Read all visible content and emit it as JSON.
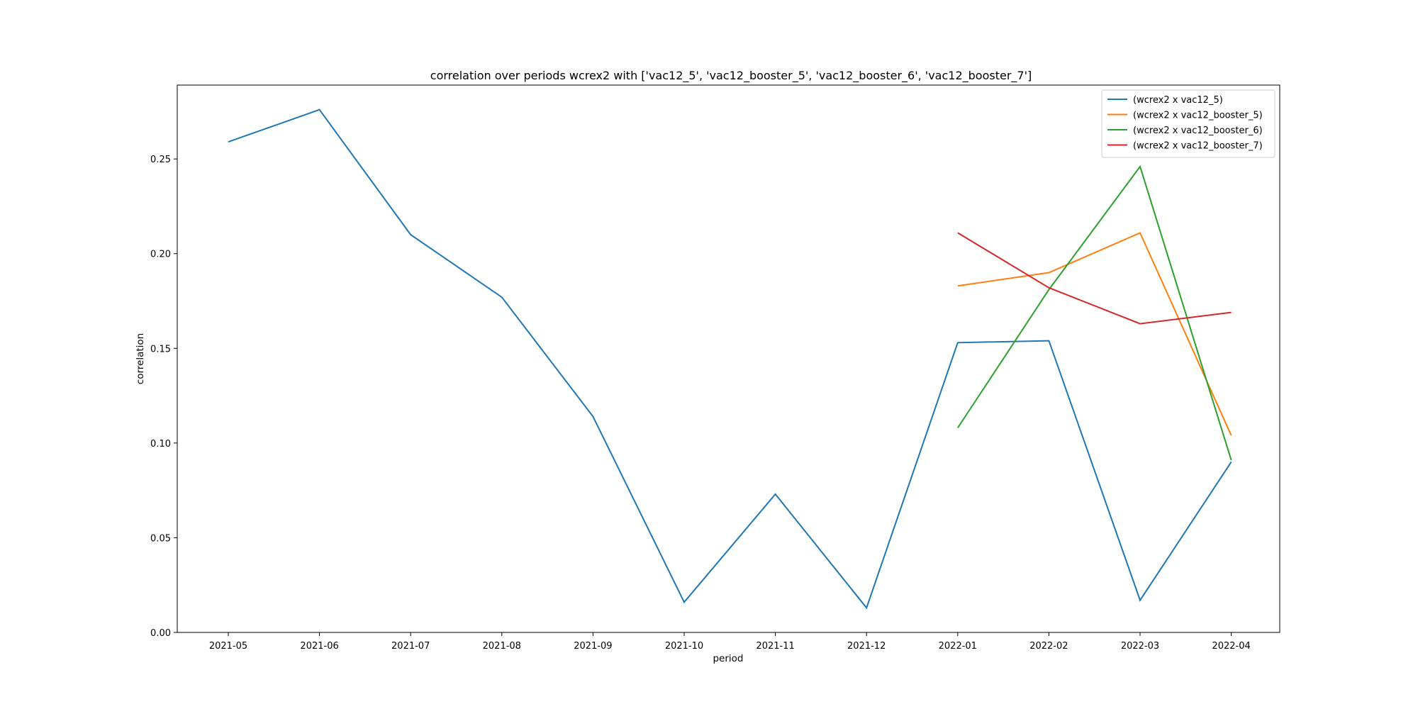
{
  "chart_data": {
    "type": "line",
    "title": "correlation over periods wcrex2 with ['vac12_5', 'vac12_booster_5', 'vac12_booster_6', 'vac12_booster_7']",
    "xlabel": "period",
    "ylabel": "correlation",
    "categories": [
      "2021-05",
      "2021-06",
      "2021-07",
      "2021-08",
      "2021-09",
      "2021-10",
      "2021-11",
      "2021-12",
      "2022-01",
      "2022-02",
      "2022-03",
      "2022-04"
    ],
    "ylim": [
      0.0,
      0.289
    ],
    "yticks": [
      0.0,
      0.05,
      0.1,
      0.15,
      0.2,
      0.25
    ],
    "ytick_labels": [
      "0.00",
      "0.05",
      "0.10",
      "0.15",
      "0.20",
      "0.25"
    ],
    "grid": false,
    "legend_position": "top-right",
    "series": [
      {
        "name": "(wcrex2 x vac12_5)",
        "color": "#1f77b4",
        "values": [
          0.259,
          0.276,
          0.21,
          0.177,
          0.114,
          0.016,
          0.073,
          0.013,
          0.153,
          0.154,
          0.017,
          0.09
        ]
      },
      {
        "name": "(wcrex2 x vac12_booster_5)",
        "color": "#ff7f0e",
        "values": [
          null,
          null,
          null,
          null,
          null,
          null,
          null,
          null,
          0.183,
          0.19,
          0.211,
          0.104
        ]
      },
      {
        "name": "(wcrex2 x vac12_booster_6)",
        "color": "#2ca02c",
        "values": [
          null,
          null,
          null,
          null,
          null,
          null,
          null,
          null,
          0.108,
          0.181,
          0.246,
          0.091
        ]
      },
      {
        "name": "(wcrex2 x vac12_booster_7)",
        "color": "#d62728",
        "values": [
          null,
          null,
          null,
          null,
          null,
          null,
          null,
          null,
          0.211,
          0.182,
          0.163,
          0.169
        ]
      }
    ]
  }
}
